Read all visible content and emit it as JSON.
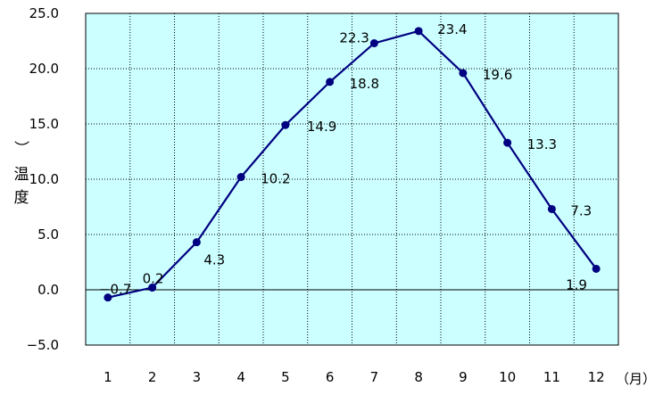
{
  "chart_data": {
    "type": "line",
    "categories": [
      "1",
      "2",
      "3",
      "4",
      "5",
      "6",
      "7",
      "8",
      "9",
      "10",
      "11",
      "12"
    ],
    "values": [
      -0.7,
      0.2,
      4.3,
      10.2,
      14.9,
      18.8,
      22.3,
      23.4,
      19.6,
      13.3,
      7.3,
      1.9
    ],
    "data_labels": [
      "−0.7",
      "0.2",
      "4.3",
      "10.2",
      "14.9",
      "18.8",
      "22.3",
      "23.4",
      "19.6",
      "13.3",
      "7.3",
      "1.9"
    ],
    "y_ticks": [
      "25.0",
      "20.0",
      "15.0",
      "10.0",
      "5.0",
      "0.0",
      "−5.0"
    ],
    "ylim": [
      -5,
      25
    ],
    "ylabel": "温度）",
    "xlabel": "（月）",
    "grid": true,
    "colors": {
      "plot_bg": "#ccffff",
      "line": "#000080",
      "grid": "#000000"
    }
  }
}
